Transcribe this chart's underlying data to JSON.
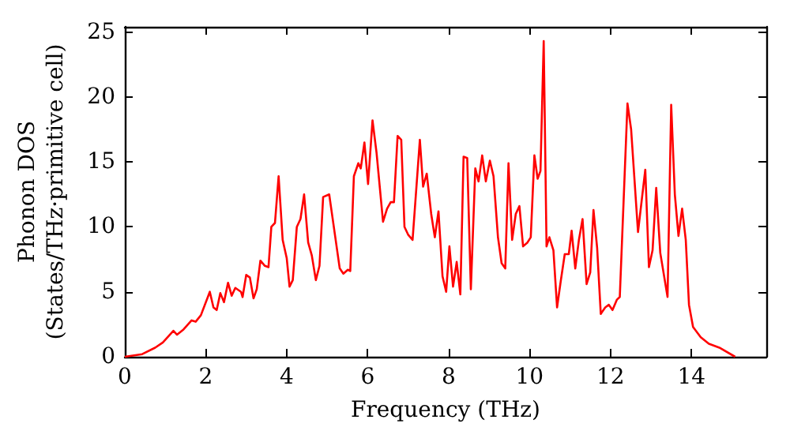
{
  "chart_data": {
    "type": "line",
    "xlabel": "Frequency (THz)",
    "ylabel": "Phonon DOS\n(States/THz·primitive cell)",
    "xlim": [
      0,
      15.85
    ],
    "xticks": [
      0,
      2,
      4,
      6,
      8,
      10,
      12,
      14
    ],
    "ylim": [
      0,
      25.4
    ],
    "yticks": [
      0,
      5,
      10,
      15,
      20,
      25
    ],
    "marker": "none",
    "line_style": "solid",
    "series": [
      {
        "color": "#ff0000",
        "x": [
          0,
          0.43,
          0.75,
          0.94,
          1.2,
          1.29,
          1.45,
          1.65,
          1.75,
          1.88,
          2.1,
          2.19,
          2.27,
          2.36,
          2.45,
          2.55,
          2.64,
          2.73,
          2.87,
          2.91,
          3.0,
          3.09,
          3.18,
          3.26,
          3.35,
          3.46,
          3.55,
          3.62,
          3.71,
          3.8,
          3.9,
          4.0,
          4.07,
          4.15,
          4.25,
          4.34,
          4.43,
          4.53,
          4.62,
          4.72,
          4.81,
          4.9,
          5.05,
          5.31,
          5.4,
          5.51,
          5.57,
          5.66,
          5.77,
          5.83,
          5.92,
          6.01,
          6.12,
          6.22,
          6.38,
          6.48,
          6.57,
          6.65,
          6.74,
          6.83,
          6.91,
          7.0,
          7.11,
          7.29,
          7.37,
          7.46,
          7.57,
          7.66,
          7.75,
          7.85,
          7.94,
          8.02,
          8.11,
          8.2,
          8.29,
          8.37,
          8.46,
          8.55,
          8.66,
          8.74,
          8.83,
          8.92,
          9.02,
          9.11,
          9.22,
          9.31,
          9.4,
          9.48,
          9.57,
          9.66,
          9.75,
          9.84,
          9.95,
          10.03,
          10.12,
          10.2,
          10.27,
          10.35,
          10.42,
          10.49,
          10.59,
          10.68,
          10.77,
          10.87,
          10.97,
          11.04,
          11.13,
          11.22,
          11.31,
          11.41,
          11.5,
          11.58,
          11.67,
          11.76,
          11.87,
          11.96,
          12.05,
          12.16,
          12.23,
          12.42,
          12.51,
          12.68,
          12.86,
          12.95,
          13.04,
          13.13,
          13.23,
          13.41,
          13.5,
          13.59,
          13.68,
          13.77,
          13.86,
          13.94,
          14.04,
          14.23,
          14.43,
          14.69,
          15.08
        ],
        "values": [
          0,
          0.2,
          0.7,
          1.1,
          2.0,
          1.7,
          2.1,
          2.8,
          2.7,
          3.2,
          5.0,
          3.8,
          3.6,
          4.9,
          4.2,
          5.7,
          4.7,
          5.3,
          5.0,
          4.6,
          6.3,
          6.1,
          4.5,
          5.2,
          7.4,
          7.0,
          6.9,
          10.0,
          10.3,
          13.9,
          9.0,
          7.6,
          5.4,
          5.9,
          10.0,
          10.6,
          12.5,
          8.8,
          7.8,
          5.9,
          7.0,
          12.3,
          12.5,
          6.8,
          6.4,
          6.7,
          6.6,
          13.9,
          14.9,
          14.5,
          16.5,
          13.3,
          18.2,
          15.7,
          10.4,
          11.4,
          11.9,
          11.9,
          17.0,
          16.7,
          10.0,
          9.4,
          9.0,
          16.7,
          13.1,
          14.1,
          11.0,
          9.2,
          11.2,
          6.2,
          5.0,
          8.5,
          5.4,
          7.3,
          4.8,
          15.4,
          15.3,
          5.2,
          14.5,
          13.5,
          15.5,
          13.5,
          15.1,
          13.9,
          9.2,
          7.2,
          6.8,
          14.9,
          9.0,
          11.0,
          11.6,
          8.5,
          8.8,
          9.2,
          15.5,
          13.7,
          14.3,
          24.3,
          8.5,
          9.2,
          8.2,
          3.8,
          5.8,
          7.9,
          7.9,
          9.7,
          6.8,
          9.0,
          10.6,
          5.6,
          6.5,
          11.3,
          8.4,
          3.3,
          3.8,
          4.0,
          3.6,
          4.4,
          4.6,
          19.5,
          17.5,
          9.6,
          14.4,
          6.9,
          8.2,
          13.0,
          8.0,
          4.6,
          19.4,
          12.5,
          9.3,
          11.4,
          9.0,
          4.0,
          2.3,
          1.5,
          1.0,
          0.7,
          0
        ]
      }
    ]
  }
}
